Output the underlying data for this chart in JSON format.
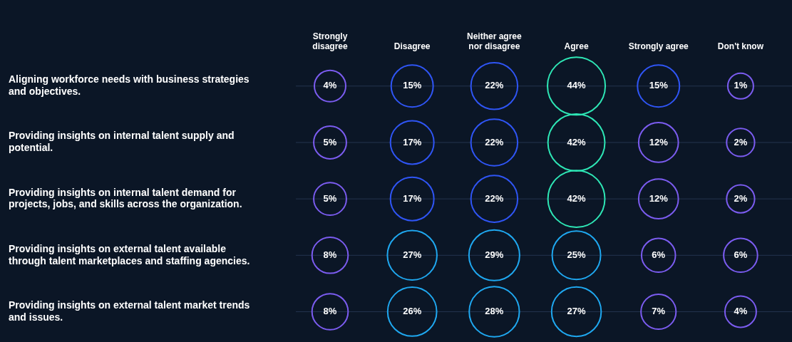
{
  "chart_data": {
    "type": "heatmap",
    "categories": [
      "Strongly disagree",
      "Disagree",
      "Neither agree nor disagree",
      "Agree",
      "Strongly agree",
      "Don't know"
    ],
    "y_categories": [
      "Aligning workforce needs with business strategies and objectives.",
      "Providing insights on internal talent supply and potential.",
      "Providing insights on internal talent demand for projects, jobs, and skills across the organization.",
      "Providing insights on external talent available through talent marketplaces and staffing agencies.",
      "Providing insights on external talent market trends and issues."
    ],
    "cells": [
      [
        4,
        15,
        22,
        44,
        15,
        1
      ],
      [
        5,
        17,
        22,
        42,
        12,
        2
      ],
      [
        5,
        17,
        22,
        42,
        12,
        2
      ],
      [
        8,
        27,
        29,
        25,
        6,
        6
      ],
      [
        8,
        26,
        28,
        27,
        7,
        4
      ]
    ],
    "cell_labels": [
      [
        "4%",
        "15%",
        "22%",
        "44%",
        "15%",
        "1%"
      ],
      [
        "5%",
        "17%",
        "22%",
        "42%",
        "12%",
        "2%"
      ],
      [
        "5%",
        "17%",
        "22%",
        "42%",
        "12%",
        "2%"
      ],
      [
        "8%",
        "27%",
        "29%",
        "25%",
        "6%",
        "6%"
      ],
      [
        "8%",
        "26%",
        "28%",
        "27%",
        "7%",
        "4%"
      ]
    ],
    "colors": [
      [
        "#7b5cf0",
        "#2f55f5",
        "#2f55f5",
        "#2ee6b5",
        "#2f55f5",
        "#7b5cf0"
      ],
      [
        "#7b5cf0",
        "#2f55f5",
        "#2f55f5",
        "#2ee6b5",
        "#7b5cf0",
        "#7b5cf0"
      ],
      [
        "#7b5cf0",
        "#2f55f5",
        "#2f55f5",
        "#2ee6b5",
        "#7b5cf0",
        "#7b5cf0"
      ],
      [
        "#7b5cf0",
        "#1fa8f0",
        "#1fa8f0",
        "#1fa8f0",
        "#7b5cf0",
        "#7b5cf0"
      ],
      [
        "#7b5cf0",
        "#1fa8f0",
        "#1fa8f0",
        "#1fa8f0",
        "#7b5cf0",
        "#7b5cf0"
      ]
    ],
    "grid": "y",
    "legend": false
  }
}
